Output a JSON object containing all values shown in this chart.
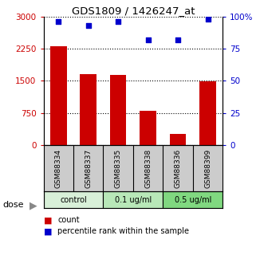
{
  "title": "GDS1809 / 1426247_at",
  "samples": [
    "GSM88334",
    "GSM88337",
    "GSM88335",
    "GSM88338",
    "GSM88336",
    "GSM88399"
  ],
  "bar_values": [
    2300,
    1650,
    1630,
    790,
    250,
    1480
  ],
  "scatter_values": [
    96,
    93,
    96,
    82,
    82,
    98
  ],
  "groups": [
    {
      "label": "control",
      "indices": [
        0,
        1
      ],
      "color": "#d8f0d8"
    },
    {
      "label": "0.1 ug/ml",
      "indices": [
        2,
        3
      ],
      "color": "#b8e8b8"
    },
    {
      "label": "0.5 ug/ml",
      "indices": [
        4,
        5
      ],
      "color": "#80d880"
    }
  ],
  "bar_color": "#cc0000",
  "scatter_color": "#0000cc",
  "left_axis_color": "#cc0000",
  "right_axis_color": "#0000cc",
  "ylim_left": [
    0,
    3000
  ],
  "ylim_right": [
    0,
    100
  ],
  "yticks_left": [
    0,
    750,
    1500,
    2250,
    3000
  ],
  "ytick_labels_left": [
    "0",
    "750",
    "1500",
    "2250",
    "3000"
  ],
  "yticks_right": [
    0,
    25,
    50,
    75,
    100
  ],
  "ytick_labels_right": [
    "0",
    "25",
    "50",
    "75",
    "100%"
  ],
  "dose_label": "dose",
  "legend_bar": "count",
  "legend_scatter": "percentile rank within the sample",
  "bg_color": "#ffffff",
  "sample_bg_color": "#cccccc"
}
